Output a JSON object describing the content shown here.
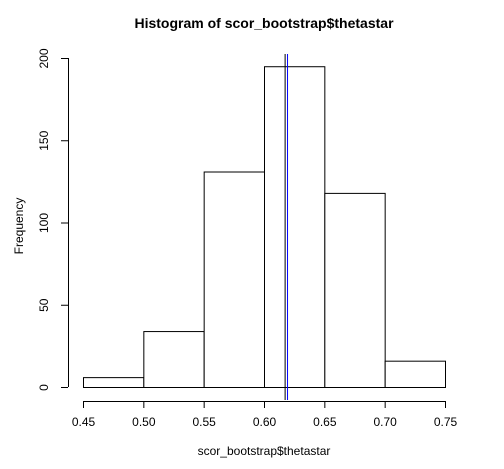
{
  "chart_data": {
    "type": "bar",
    "title": "Histogram of scor_bootstrap$thetastar",
    "xlabel": "scor_bootstrap$thetastar",
    "ylabel": "Frequency",
    "bins": [
      {
        "start": 0.45,
        "end": 0.5,
        "count": 6
      },
      {
        "start": 0.5,
        "end": 0.55,
        "count": 34
      },
      {
        "start": 0.55,
        "end": 0.6,
        "count": 131
      },
      {
        "start": 0.6,
        "end": 0.65,
        "count": 195
      },
      {
        "start": 0.65,
        "end": 0.7,
        "count": 118
      },
      {
        "start": 0.7,
        "end": 0.75,
        "count": 16
      }
    ],
    "xlim": [
      0.45,
      0.75
    ],
    "ylim": [
      0,
      200
    ],
    "x_ticks": [
      "0.45",
      "0.50",
      "0.55",
      "0.60",
      "0.65",
      "0.70",
      "0.75"
    ],
    "y_ticks": [
      "0",
      "50",
      "100",
      "150",
      "200"
    ],
    "vlines": [
      {
        "x": 0.6175,
        "color": "#000000"
      },
      {
        "x": 0.6195,
        "color": "#0000ff"
      }
    ],
    "grid": false,
    "legend": "none"
  }
}
